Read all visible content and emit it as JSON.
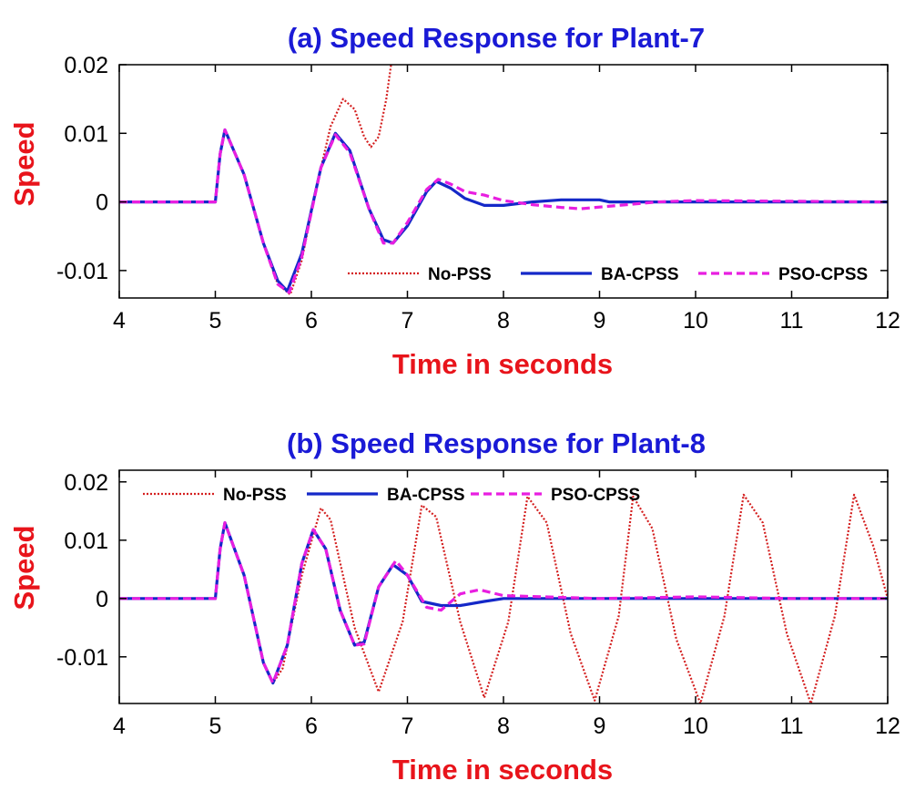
{
  "colors": {
    "title": "#1a1ad6",
    "axis_label": "#e8141b",
    "no_pss": "#d42020",
    "ba_cpss": "#1428c8",
    "pso_cpss": "#e81ee0"
  },
  "chart_data": [
    {
      "type": "line",
      "title": "(a) Speed Response for Plant-7",
      "xlabel": "Time in seconds",
      "ylabel": "Speed",
      "xlim": [
        4,
        12
      ],
      "ylim": [
        -0.014,
        0.02
      ],
      "xticks": [
        "4",
        "5",
        "6",
        "7",
        "8",
        "9",
        "10",
        "11",
        "12"
      ],
      "yticks": [
        {
          "value": -0.01,
          "label": "-0.01"
        },
        {
          "value": 0,
          "label": "0"
        },
        {
          "value": 0.01,
          "label": "0.01"
        },
        {
          "value": 0.02,
          "label": "0.02"
        }
      ],
      "legend_position": "bottom-right",
      "series": [
        {
          "name": "No-PSS",
          "style": "dotted",
          "x": [
            4,
            5.0,
            5.05,
            5.1,
            5.3,
            5.5,
            5.65,
            5.78,
            5.9,
            6.05,
            6.2,
            6.33,
            6.45,
            6.55,
            6.62,
            6.7,
            6.78,
            6.84
          ],
          "y": [
            0,
            0,
            0.007,
            0.0105,
            0.004,
            -0.006,
            -0.012,
            -0.0135,
            -0.0085,
            0.002,
            0.011,
            0.015,
            0.0135,
            0.0095,
            0.008,
            0.0095,
            0.015,
            0.021
          ]
        },
        {
          "name": "BA-CPSS",
          "style": "solid",
          "x": [
            4,
            5.0,
            5.05,
            5.1,
            5.3,
            5.5,
            5.65,
            5.75,
            5.9,
            6.1,
            6.25,
            6.4,
            6.6,
            6.75,
            6.85,
            7.0,
            7.2,
            7.3,
            7.45,
            7.6,
            7.8,
            8.0,
            8.3,
            8.6,
            9.0,
            9.1,
            9.5,
            12.0
          ],
          "y": [
            0,
            0,
            0.007,
            0.0105,
            0.004,
            -0.006,
            -0.0115,
            -0.013,
            -0.0075,
            0.005,
            0.01,
            0.0075,
            -0.001,
            -0.0055,
            -0.006,
            -0.0035,
            0.0015,
            0.003,
            0.002,
            0.0005,
            -0.0005,
            -0.0005,
            0.0,
            0.0003,
            0.0003,
            0.0,
            0.0,
            0.0
          ]
        },
        {
          "name": "PSO-CPSS",
          "style": "dashed",
          "x": [
            4,
            5.0,
            5.05,
            5.1,
            5.3,
            5.5,
            5.65,
            5.77,
            5.9,
            6.1,
            6.25,
            6.4,
            6.6,
            6.75,
            6.85,
            7.0,
            7.2,
            7.32,
            7.45,
            7.6,
            7.8,
            8.0,
            8.3,
            8.6,
            8.8,
            9.2,
            9.6,
            10.0,
            12.0
          ],
          "y": [
            0,
            0,
            0.007,
            0.0105,
            0.004,
            -0.006,
            -0.012,
            -0.0132,
            -0.008,
            0.005,
            0.0098,
            0.0072,
            -0.001,
            -0.006,
            -0.006,
            -0.003,
            0.0018,
            0.0033,
            0.0026,
            0.0015,
            0.001,
            0.0002,
            -0.0004,
            -0.0008,
            -0.001,
            -0.0005,
            0.0,
            0.0002,
            0.0
          ]
        }
      ]
    },
    {
      "type": "line",
      "title": "(b) Speed Response for Plant-8",
      "xlabel": "Time in seconds",
      "ylabel": "Speed",
      "xlim": [
        4,
        12
      ],
      "ylim": [
        -0.018,
        0.022
      ],
      "xticks": [
        "4",
        "5",
        "6",
        "7",
        "8",
        "9",
        "10",
        "11",
        "12"
      ],
      "yticks": [
        {
          "value": -0.01,
          "label": "-0.01"
        },
        {
          "value": 0,
          "label": "0"
        },
        {
          "value": 0.01,
          "label": "0.01"
        },
        {
          "value": 0.02,
          "label": "0.02"
        }
      ],
      "legend_position": "top-left",
      "series": [
        {
          "name": "No-PSS",
          "style": "dotted",
          "x": [
            4,
            5.0,
            5.05,
            5.1,
            5.3,
            5.5,
            5.6,
            5.7,
            5.9,
            6.1,
            6.2,
            6.45,
            6.7,
            6.95,
            7.15,
            7.3,
            7.55,
            7.8,
            8.05,
            8.25,
            8.45,
            8.7,
            8.95,
            9.2,
            9.35,
            9.55,
            9.8,
            10.05,
            10.3,
            10.5,
            10.7,
            10.95,
            11.2,
            11.45,
            11.65,
            11.85,
            12.0
          ],
          "y": [
            0,
            0,
            0.0085,
            0.013,
            0.004,
            -0.011,
            -0.0145,
            -0.012,
            0.004,
            0.0155,
            0.0135,
            -0.005,
            -0.016,
            -0.004,
            0.016,
            0.014,
            -0.004,
            -0.017,
            -0.004,
            0.0175,
            0.013,
            -0.006,
            -0.0175,
            -0.003,
            0.0175,
            0.012,
            -0.007,
            -0.018,
            -0.003,
            0.0178,
            0.013,
            -0.006,
            -0.018,
            -0.003,
            0.0178,
            0.009,
            0.0
          ]
        },
        {
          "name": "BA-CPSS",
          "style": "solid",
          "x": [
            4,
            5.0,
            5.05,
            5.1,
            5.3,
            5.5,
            5.6,
            5.75,
            5.9,
            6.02,
            6.15,
            6.3,
            6.45,
            6.55,
            6.7,
            6.85,
            7.0,
            7.15,
            7.35,
            7.55,
            7.8,
            8.0,
            12.0
          ],
          "y": [
            0,
            0,
            0.0085,
            0.013,
            0.004,
            -0.011,
            -0.0145,
            -0.008,
            0.006,
            0.0118,
            0.0085,
            -0.002,
            -0.008,
            -0.0075,
            0.002,
            0.0058,
            0.004,
            -0.0005,
            -0.0012,
            -0.0012,
            -0.0005,
            0.0,
            0.0
          ]
        },
        {
          "name": "PSO-CPSS",
          "style": "dashed",
          "x": [
            4,
            5.0,
            5.05,
            5.1,
            5.3,
            5.5,
            5.6,
            5.75,
            5.9,
            6.02,
            6.15,
            6.3,
            6.45,
            6.55,
            6.7,
            6.88,
            7.0,
            7.2,
            7.35,
            7.55,
            7.75,
            8.0,
            9.0,
            10.0,
            11.0,
            12.0
          ],
          "y": [
            0,
            0,
            0.0085,
            0.013,
            0.004,
            -0.011,
            -0.0145,
            -0.008,
            0.006,
            0.0118,
            0.0085,
            -0.002,
            -0.008,
            -0.0078,
            0.002,
            0.0065,
            0.004,
            -0.0015,
            -0.002,
            0.0008,
            0.0015,
            0.0005,
            0.0,
            0.0003,
            0.0,
            0.0
          ]
        }
      ]
    }
  ]
}
